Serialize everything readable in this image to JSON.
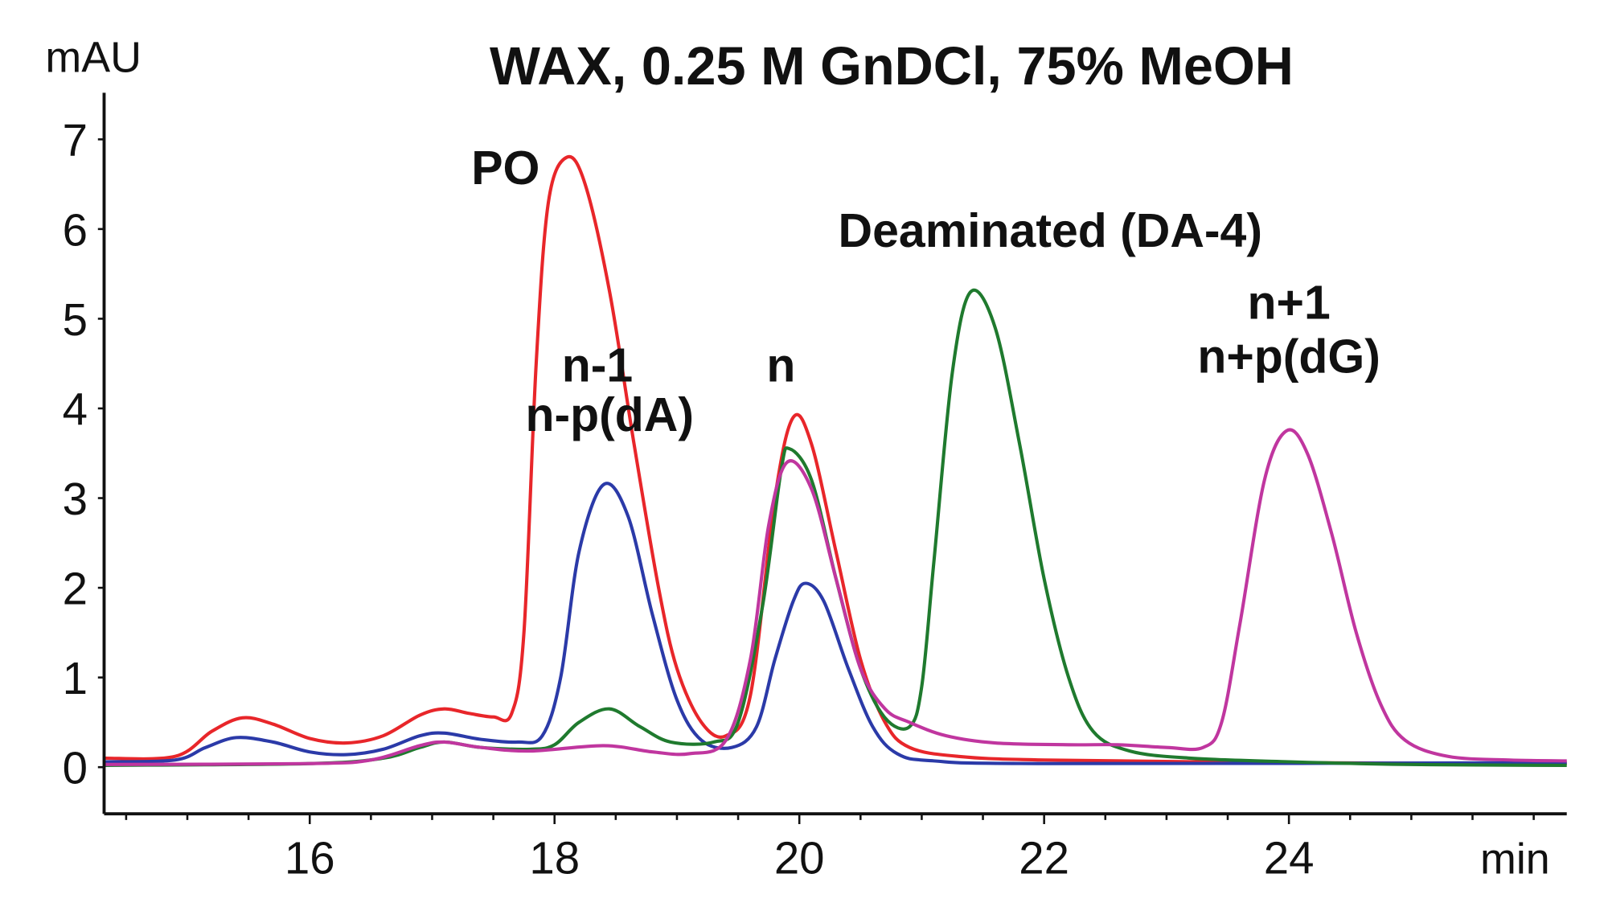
{
  "chart_data": {
    "type": "line",
    "title": "WAX, 0.25 M GnDCl, 75% MeOH",
    "xlabel": "min",
    "ylabel": "mAU",
    "xlim": [
      14.32,
      26.27
    ],
    "ylim": [
      -0.52,
      7.52
    ],
    "x_ticks": [
      16,
      18,
      20,
      22,
      24
    ],
    "y_ticks": [
      0,
      1,
      2,
      3,
      4,
      5,
      6,
      7
    ],
    "grid": false,
    "annotations": [
      {
        "text": "PO",
        "x": 17.6,
        "y": 6.5
      },
      {
        "text": "n-1",
        "x": 18.35,
        "y": 4.3
      },
      {
        "text": "n-p(dA)",
        "x": 18.45,
        "y": 3.75
      },
      {
        "text": "n",
        "x": 19.85,
        "y": 4.3
      },
      {
        "text": "Deaminated (DA-4)",
        "x": 22.05,
        "y": 5.8
      },
      {
        "text": "n+1",
        "x": 24.0,
        "y": 5.0
      },
      {
        "text": "n+p(dG)",
        "x": 24.0,
        "y": 4.4
      }
    ],
    "series": [
      {
        "color": "#e8262a",
        "points": [
          [
            14.32,
            0.1
          ],
          [
            14.9,
            0.12
          ],
          [
            15.2,
            0.4
          ],
          [
            15.45,
            0.55
          ],
          [
            15.7,
            0.48
          ],
          [
            16.0,
            0.32
          ],
          [
            16.3,
            0.27
          ],
          [
            16.6,
            0.35
          ],
          [
            16.9,
            0.58
          ],
          [
            17.1,
            0.65
          ],
          [
            17.3,
            0.6
          ],
          [
            17.5,
            0.56
          ],
          [
            17.65,
            0.6
          ],
          [
            17.75,
            1.5
          ],
          [
            17.85,
            4.5
          ],
          [
            17.95,
            6.3
          ],
          [
            18.1,
            6.8
          ],
          [
            18.25,
            6.5
          ],
          [
            18.45,
            5.3
          ],
          [
            18.65,
            3.6
          ],
          [
            18.85,
            2.0
          ],
          [
            19.0,
            1.1
          ],
          [
            19.2,
            0.5
          ],
          [
            19.4,
            0.35
          ],
          [
            19.6,
            0.8
          ],
          [
            19.8,
            3.0
          ],
          [
            19.95,
            3.9
          ],
          [
            20.1,
            3.6
          ],
          [
            20.3,
            2.4
          ],
          [
            20.5,
            1.2
          ],
          [
            20.7,
            0.5
          ],
          [
            20.9,
            0.22
          ],
          [
            21.3,
            0.12
          ],
          [
            22.0,
            0.08
          ],
          [
            24.0,
            0.05
          ],
          [
            26.27,
            0.04
          ]
        ]
      },
      {
        "color": "#2b3aa8",
        "points": [
          [
            14.32,
            0.06
          ],
          [
            14.9,
            0.08
          ],
          [
            15.15,
            0.22
          ],
          [
            15.4,
            0.33
          ],
          [
            15.7,
            0.28
          ],
          [
            16.0,
            0.17
          ],
          [
            16.3,
            0.14
          ],
          [
            16.6,
            0.2
          ],
          [
            16.9,
            0.35
          ],
          [
            17.1,
            0.38
          ],
          [
            17.4,
            0.31
          ],
          [
            17.7,
            0.28
          ],
          [
            17.9,
            0.35
          ],
          [
            18.05,
            1.0
          ],
          [
            18.2,
            2.4
          ],
          [
            18.4,
            3.15
          ],
          [
            18.6,
            2.8
          ],
          [
            18.8,
            1.7
          ],
          [
            19.0,
            0.75
          ],
          [
            19.2,
            0.3
          ],
          [
            19.45,
            0.22
          ],
          [
            19.65,
            0.45
          ],
          [
            19.8,
            1.2
          ],
          [
            19.95,
            1.85
          ],
          [
            20.05,
            2.05
          ],
          [
            20.2,
            1.85
          ],
          [
            20.4,
            1.1
          ],
          [
            20.6,
            0.45
          ],
          [
            20.8,
            0.15
          ],
          [
            21.1,
            0.07
          ],
          [
            22.0,
            0.04
          ],
          [
            26.27,
            0.05
          ]
        ]
      },
      {
        "color": "#1f7a2e",
        "points": [
          [
            14.32,
            0.02
          ],
          [
            16.0,
            0.04
          ],
          [
            16.6,
            0.1
          ],
          [
            16.9,
            0.22
          ],
          [
            17.1,
            0.28
          ],
          [
            17.4,
            0.22
          ],
          [
            17.8,
            0.2
          ],
          [
            18.0,
            0.25
          ],
          [
            18.2,
            0.5
          ],
          [
            18.45,
            0.65
          ],
          [
            18.7,
            0.45
          ],
          [
            18.95,
            0.28
          ],
          [
            19.3,
            0.28
          ],
          [
            19.5,
            0.5
          ],
          [
            19.7,
            1.8
          ],
          [
            19.85,
            3.3
          ],
          [
            19.92,
            3.55
          ],
          [
            20.1,
            3.2
          ],
          [
            20.3,
            2.1
          ],
          [
            20.5,
            1.1
          ],
          [
            20.7,
            0.55
          ],
          [
            20.9,
            0.45
          ],
          [
            21.0,
            0.9
          ],
          [
            21.1,
            2.3
          ],
          [
            21.25,
            4.4
          ],
          [
            21.4,
            5.3
          ],
          [
            21.6,
            4.9
          ],
          [
            21.8,
            3.6
          ],
          [
            22.0,
            2.1
          ],
          [
            22.2,
            1.0
          ],
          [
            22.4,
            0.4
          ],
          [
            22.7,
            0.18
          ],
          [
            23.2,
            0.1
          ],
          [
            24.0,
            0.06
          ],
          [
            25.0,
            0.03
          ],
          [
            26.27,
            0.02
          ]
        ]
      },
      {
        "color": "#c0369f",
        "points": [
          [
            14.32,
            0.03
          ],
          [
            16.0,
            0.04
          ],
          [
            16.5,
            0.08
          ],
          [
            16.9,
            0.24
          ],
          [
            17.1,
            0.28
          ],
          [
            17.4,
            0.22
          ],
          [
            17.8,
            0.18
          ],
          [
            18.4,
            0.24
          ],
          [
            18.8,
            0.17
          ],
          [
            19.1,
            0.15
          ],
          [
            19.4,
            0.3
          ],
          [
            19.6,
            1.2
          ],
          [
            19.75,
            2.7
          ],
          [
            19.9,
            3.4
          ],
          [
            20.1,
            3.1
          ],
          [
            20.3,
            2.1
          ],
          [
            20.5,
            1.1
          ],
          [
            20.7,
            0.65
          ],
          [
            20.9,
            0.5
          ],
          [
            21.2,
            0.35
          ],
          [
            21.6,
            0.27
          ],
          [
            22.2,
            0.25
          ],
          [
            22.6,
            0.25
          ],
          [
            23.0,
            0.22
          ],
          [
            23.3,
            0.22
          ],
          [
            23.45,
            0.5
          ],
          [
            23.6,
            1.6
          ],
          [
            23.8,
            3.2
          ],
          [
            23.98,
            3.75
          ],
          [
            24.15,
            3.5
          ],
          [
            24.35,
            2.6
          ],
          [
            24.55,
            1.5
          ],
          [
            24.75,
            0.7
          ],
          [
            24.95,
            0.3
          ],
          [
            25.3,
            0.12
          ],
          [
            25.8,
            0.08
          ],
          [
            26.27,
            0.07
          ]
        ]
      }
    ]
  }
}
